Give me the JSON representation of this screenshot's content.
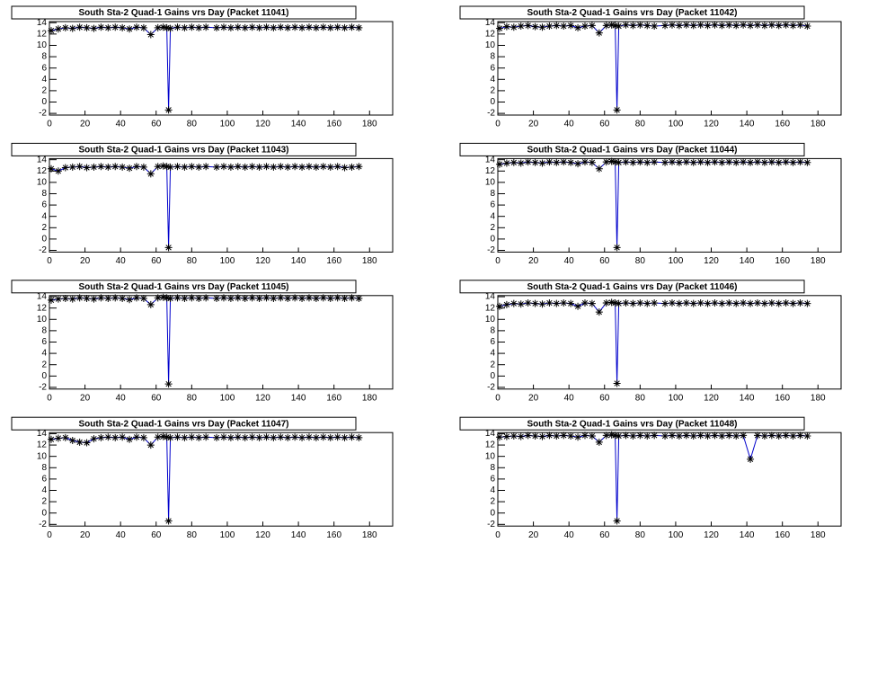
{
  "chart_data": [
    {
      "type": "line",
      "title": "South Sta-2 Quad-1 Gains vrs Day (Packet 11041)",
      "color": "#0000cc",
      "marker_color": "#000000",
      "xlim": [
        0,
        193
      ],
      "ylim": [
        -2.3,
        14.2
      ],
      "xticks": [
        0,
        20,
        40,
        60,
        80,
        100,
        120,
        140,
        160,
        180
      ],
      "yticks": [
        -2,
        0,
        2,
        4,
        6,
        8,
        10,
        12,
        14
      ],
      "x": [
        1,
        5,
        9,
        13,
        17,
        21,
        25,
        29,
        33,
        37,
        41,
        45,
        49,
        53,
        57,
        61,
        64,
        66,
        67,
        68,
        72,
        76,
        80,
        84,
        88,
        94,
        98,
        102,
        106,
        110,
        114,
        118,
        122,
        126,
        130,
        134,
        138,
        142,
        146,
        150,
        154,
        158,
        162,
        166,
        170,
        174
      ],
      "values": [
        12.6,
        12.9,
        13.1,
        13.0,
        13.2,
        13.1,
        13.0,
        13.2,
        13.1,
        13.2,
        13.1,
        12.9,
        13.2,
        13.1,
        11.9,
        13.1,
        13.2,
        13.1,
        -1.4,
        13.0,
        13.2,
        13.1,
        13.2,
        13.1,
        13.2,
        13.1,
        13.2,
        13.1,
        13.2,
        13.1,
        13.2,
        13.1,
        13.2,
        13.1,
        13.2,
        13.1,
        13.2,
        13.1,
        13.2,
        13.1,
        13.2,
        13.1,
        13.2,
        13.1,
        13.2,
        13.1
      ]
    },
    {
      "type": "line",
      "title": "South Sta-2 Quad-1 Gains vrs Day (Packet 11042)",
      "color": "#0000cc",
      "marker_color": "#000000",
      "xlim": [
        0,
        193
      ],
      "ylim": [
        -2.3,
        14.2
      ],
      "xticks": [
        0,
        20,
        40,
        60,
        80,
        100,
        120,
        140,
        160,
        180
      ],
      "yticks": [
        -2,
        0,
        2,
        4,
        6,
        8,
        10,
        12,
        14
      ],
      "x": [
        1,
        5,
        9,
        13,
        17,
        21,
        25,
        29,
        33,
        37,
        41,
        45,
        49,
        53,
        57,
        61,
        64,
        66,
        67,
        68,
        72,
        76,
        80,
        84,
        88,
        94,
        98,
        102,
        106,
        110,
        114,
        118,
        122,
        126,
        130,
        134,
        138,
        142,
        146,
        150,
        154,
        158,
        162,
        166,
        170,
        174
      ],
      "values": [
        13.0,
        13.3,
        13.2,
        13.4,
        13.5,
        13.3,
        13.2,
        13.4,
        13.5,
        13.4,
        13.5,
        13.1,
        13.4,
        13.5,
        12.2,
        13.5,
        13.6,
        13.5,
        -1.4,
        13.4,
        13.6,
        13.5,
        13.6,
        13.5,
        13.4,
        13.5,
        13.6,
        13.5,
        13.6,
        13.5,
        13.6,
        13.5,
        13.6,
        13.5,
        13.6,
        13.5,
        13.6,
        13.5,
        13.6,
        13.5,
        13.6,
        13.5,
        13.6,
        13.5,
        13.6,
        13.4
      ]
    },
    {
      "type": "line",
      "title": "South Sta-2 Quad-1 Gains vrs Day (Packet 11043)",
      "color": "#0000cc",
      "marker_color": "#000000",
      "xlim": [
        0,
        193
      ],
      "ylim": [
        -2.3,
        14.2
      ],
      "xticks": [
        0,
        20,
        40,
        60,
        80,
        100,
        120,
        140,
        160,
        180
      ],
      "yticks": [
        -2,
        0,
        2,
        4,
        6,
        8,
        10,
        12,
        14
      ],
      "x": [
        1,
        5,
        9,
        13,
        17,
        21,
        25,
        29,
        33,
        37,
        41,
        45,
        49,
        53,
        57,
        61,
        64,
        66,
        67,
        68,
        72,
        76,
        80,
        84,
        88,
        94,
        98,
        102,
        106,
        110,
        114,
        118,
        122,
        126,
        130,
        134,
        138,
        142,
        146,
        150,
        154,
        158,
        162,
        166,
        170,
        174
      ],
      "values": [
        12.4,
        12.0,
        12.6,
        12.7,
        12.8,
        12.6,
        12.7,
        12.8,
        12.7,
        12.8,
        12.7,
        12.5,
        12.8,
        12.7,
        11.5,
        12.8,
        12.9,
        12.8,
        -1.5,
        12.7,
        12.8,
        12.7,
        12.8,
        12.7,
        12.8,
        12.7,
        12.8,
        12.7,
        12.8,
        12.7,
        12.8,
        12.7,
        12.8,
        12.7,
        12.8,
        12.7,
        12.8,
        12.7,
        12.8,
        12.7,
        12.8,
        12.7,
        12.8,
        12.6,
        12.7,
        12.8
      ]
    },
    {
      "type": "line",
      "title": "South Sta-2 Quad-1 Gains vrs Day (Packet 11044)",
      "color": "#0000cc",
      "marker_color": "#000000",
      "xlim": [
        0,
        193
      ],
      "ylim": [
        -2.3,
        14.2
      ],
      "xticks": [
        0,
        20,
        40,
        60,
        80,
        100,
        120,
        140,
        160,
        180
      ],
      "yticks": [
        -2,
        0,
        2,
        4,
        6,
        8,
        10,
        12,
        14
      ],
      "x": [
        1,
        5,
        9,
        13,
        17,
        21,
        25,
        29,
        33,
        37,
        41,
        45,
        49,
        53,
        57,
        61,
        64,
        66,
        67,
        68,
        72,
        76,
        80,
        84,
        88,
        94,
        98,
        102,
        106,
        110,
        114,
        118,
        122,
        126,
        130,
        134,
        138,
        142,
        146,
        150,
        154,
        158,
        162,
        166,
        170,
        174
      ],
      "values": [
        13.2,
        13.4,
        13.5,
        13.4,
        13.6,
        13.5,
        13.4,
        13.6,
        13.5,
        13.6,
        13.5,
        13.3,
        13.6,
        13.5,
        12.4,
        13.6,
        13.7,
        13.6,
        -1.5,
        13.5,
        13.6,
        13.5,
        13.6,
        13.5,
        13.6,
        13.5,
        13.6,
        13.5,
        13.6,
        13.5,
        13.6,
        13.5,
        13.6,
        13.5,
        13.6,
        13.5,
        13.6,
        13.5,
        13.6,
        13.5,
        13.6,
        13.5,
        13.6,
        13.5,
        13.6,
        13.5
      ]
    },
    {
      "type": "line",
      "title": "South Sta-2 Quad-1 Gains vrs Day (Packet 11045)",
      "color": "#0000cc",
      "marker_color": "#000000",
      "xlim": [
        0,
        193
      ],
      "ylim": [
        -2.3,
        14.2
      ],
      "xticks": [
        0,
        20,
        40,
        60,
        80,
        100,
        120,
        140,
        160,
        180
      ],
      "yticks": [
        -2,
        0,
        2,
        4,
        6,
        8,
        10,
        12,
        14
      ],
      "x": [
        1,
        5,
        9,
        13,
        17,
        21,
        25,
        29,
        33,
        37,
        41,
        45,
        49,
        53,
        57,
        61,
        64,
        66,
        67,
        68,
        72,
        76,
        80,
        84,
        88,
        94,
        98,
        102,
        106,
        110,
        114,
        118,
        122,
        126,
        130,
        134,
        138,
        142,
        146,
        150,
        154,
        158,
        162,
        166,
        170,
        174
      ],
      "values": [
        13.4,
        13.6,
        13.7,
        13.6,
        13.8,
        13.7,
        13.6,
        13.8,
        13.7,
        13.8,
        13.7,
        13.5,
        13.8,
        13.7,
        12.6,
        13.8,
        13.9,
        13.8,
        -1.4,
        13.7,
        13.8,
        13.7,
        13.8,
        13.7,
        13.8,
        13.7,
        13.8,
        13.7,
        13.8,
        13.7,
        13.8,
        13.7,
        13.8,
        13.7,
        13.8,
        13.7,
        13.8,
        13.7,
        13.8,
        13.7,
        13.8,
        13.7,
        13.8,
        13.7,
        13.8,
        13.7
      ]
    },
    {
      "type": "line",
      "title": "South Sta-2 Quad-1 Gains vrs Day (Packet 11046)",
      "color": "#0000cc",
      "marker_color": "#000000",
      "xlim": [
        0,
        193
      ],
      "ylim": [
        -2.3,
        14.2
      ],
      "xticks": [
        0,
        20,
        40,
        60,
        80,
        100,
        120,
        140,
        160,
        180
      ],
      "yticks": [
        -2,
        0,
        2,
        4,
        6,
        8,
        10,
        12,
        14
      ],
      "x": [
        1,
        5,
        9,
        13,
        17,
        21,
        25,
        29,
        33,
        37,
        41,
        45,
        49,
        53,
        57,
        61,
        64,
        66,
        67,
        68,
        72,
        76,
        80,
        84,
        88,
        94,
        98,
        102,
        106,
        110,
        114,
        118,
        122,
        126,
        130,
        134,
        138,
        142,
        146,
        150,
        154,
        158,
        162,
        166,
        170,
        174
      ],
      "values": [
        12.3,
        12.6,
        12.8,
        12.7,
        12.9,
        12.8,
        12.7,
        12.9,
        12.8,
        12.9,
        12.8,
        12.3,
        12.9,
        12.8,
        11.3,
        12.9,
        13.0,
        12.9,
        -1.3,
        12.8,
        12.9,
        12.8,
        12.9,
        12.8,
        12.9,
        12.8,
        12.9,
        12.8,
        12.9,
        12.8,
        12.9,
        12.8,
        12.9,
        12.8,
        12.9,
        12.8,
        12.9,
        12.8,
        12.9,
        12.8,
        12.9,
        12.8,
        12.9,
        12.8,
        12.9,
        12.8
      ]
    },
    {
      "type": "line",
      "title": "South Sta-2 Quad-1 Gains vrs Day (Packet 11047)",
      "color": "#0000cc",
      "marker_color": "#000000",
      "xlim": [
        0,
        193
      ],
      "ylim": [
        -2.3,
        14.2
      ],
      "xticks": [
        0,
        20,
        40,
        60,
        80,
        100,
        120,
        140,
        160,
        180
      ],
      "yticks": [
        -2,
        0,
        2,
        4,
        6,
        8,
        10,
        12,
        14
      ],
      "x": [
        1,
        5,
        9,
        13,
        17,
        21,
        25,
        29,
        33,
        37,
        41,
        45,
        49,
        53,
        57,
        61,
        64,
        66,
        67,
        68,
        72,
        76,
        80,
        84,
        88,
        94,
        98,
        102,
        106,
        110,
        114,
        118,
        122,
        126,
        130,
        134,
        138,
        142,
        146,
        150,
        154,
        158,
        162,
        166,
        170,
        174
      ],
      "values": [
        13.0,
        13.2,
        13.3,
        12.8,
        12.5,
        12.4,
        13.1,
        13.3,
        13.4,
        13.3,
        13.4,
        13.0,
        13.4,
        13.3,
        12.0,
        13.4,
        13.5,
        13.4,
        -1.4,
        13.3,
        13.4,
        13.3,
        13.4,
        13.3,
        13.4,
        13.3,
        13.4,
        13.3,
        13.4,
        13.3,
        13.4,
        13.3,
        13.4,
        13.3,
        13.4,
        13.3,
        13.4,
        13.3,
        13.4,
        13.3,
        13.4,
        13.3,
        13.4,
        13.3,
        13.4,
        13.3
      ]
    },
    {
      "type": "line",
      "title": "South Sta-2 Quad-1 Gains vrs Day (Packet 11048)",
      "color": "#0000cc",
      "marker_color": "#000000",
      "xlim": [
        0,
        193
      ],
      "ylim": [
        -2.3,
        14.2
      ],
      "xticks": [
        0,
        20,
        40,
        60,
        80,
        100,
        120,
        140,
        160,
        180
      ],
      "yticks": [
        -2,
        0,
        2,
        4,
        6,
        8,
        10,
        12,
        14
      ],
      "x": [
        1,
        5,
        9,
        13,
        17,
        21,
        25,
        29,
        33,
        37,
        41,
        45,
        49,
        53,
        57,
        61,
        64,
        66,
        67,
        68,
        72,
        76,
        80,
        84,
        88,
        94,
        98,
        102,
        106,
        110,
        114,
        118,
        122,
        126,
        130,
        134,
        138,
        142,
        146,
        150,
        154,
        158,
        162,
        166,
        170,
        174
      ],
      "values": [
        13.4,
        13.5,
        13.6,
        13.5,
        13.7,
        13.6,
        13.5,
        13.7,
        13.6,
        13.7,
        13.6,
        13.4,
        13.7,
        13.6,
        12.5,
        13.7,
        13.8,
        13.7,
        -1.4,
        13.6,
        13.7,
        13.6,
        13.7,
        13.6,
        13.7,
        13.6,
        13.7,
        13.6,
        13.7,
        13.6,
        13.7,
        13.6,
        13.7,
        13.6,
        13.7,
        13.6,
        13.7,
        9.5,
        13.7,
        13.6,
        13.7,
        13.6,
        13.7,
        13.6,
        13.7,
        13.6
      ]
    }
  ]
}
